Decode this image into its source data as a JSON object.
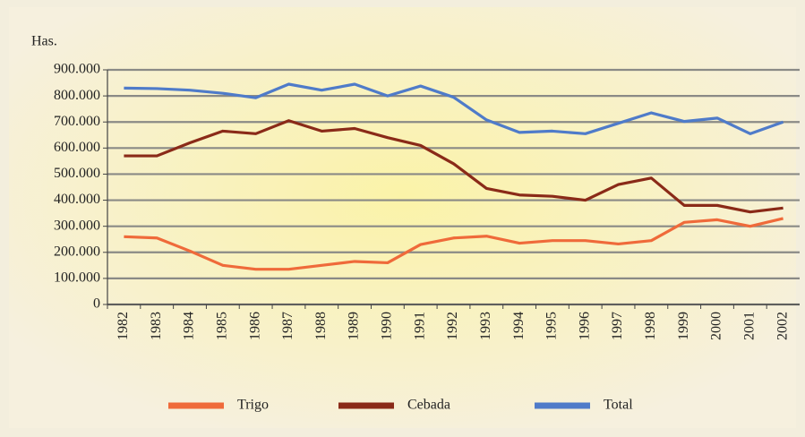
{
  "chart_data": {
    "type": "line",
    "ylabel": "Has.",
    "categories": [
      "1982",
      "1983",
      "1984",
      "1985",
      "1986",
      "1987",
      "1988",
      "1989",
      "1990",
      "1991",
      "1992",
      "1993",
      "1994",
      "1995",
      "1996",
      "1997",
      "1998",
      "1999",
      "2000",
      "2001",
      "2002"
    ],
    "series": [
      {
        "name": "Trigo",
        "color": "#ef6a3a",
        "values": [
          260000,
          255000,
          205000,
          150000,
          135000,
          135000,
          150000,
          165000,
          160000,
          230000,
          255000,
          262000,
          235000,
          245000,
          245000,
          232000,
          245000,
          315000,
          325000,
          300000,
          330000
        ]
      },
      {
        "name": "Cebada",
        "color": "#8a2a18",
        "values": [
          570000,
          570000,
          620000,
          665000,
          655000,
          705000,
          665000,
          675000,
          640000,
          610000,
          540000,
          445000,
          420000,
          415000,
          400000,
          460000,
          485000,
          380000,
          380000,
          355000,
          370000
        ]
      },
      {
        "name": "Total",
        "color": "#4f7bc9",
        "values": [
          830000,
          828000,
          822000,
          810000,
          793000,
          845000,
          822000,
          845000,
          800000,
          838000,
          795000,
          708000,
          660000,
          665000,
          655000,
          695000,
          735000,
          702000,
          715000,
          655000,
          700000
        ]
      }
    ],
    "ylim": [
      0,
      900000
    ],
    "yticks": [
      0,
      {
        "value": 100000,
        "label": "100.000"
      },
      {
        "value": 200000,
        "label": "200.000"
      },
      {
        "value": 300000,
        "label": "300.000"
      },
      {
        "value": 400000,
        "label": "400.000"
      },
      {
        "value": 500000,
        "label": "500.000"
      },
      {
        "value": 600000,
        "label": "600.000"
      },
      {
        "value": 700000,
        "label": "700.000"
      },
      {
        "value": 800000,
        "label": "800.000"
      },
      {
        "value": 900000,
        "label": "900.000"
      }
    ],
    "grid": true,
    "legend": "bottom"
  }
}
